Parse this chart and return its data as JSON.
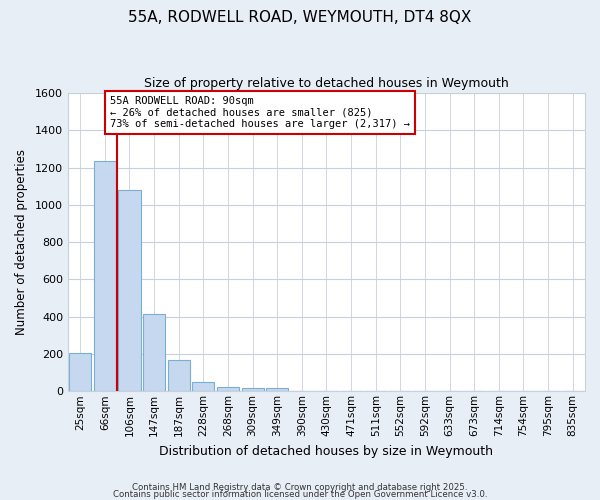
{
  "title": "55A, RODWELL ROAD, WEYMOUTH, DT4 8QX",
  "subtitle": "Size of property relative to detached houses in Weymouth",
  "xlabel": "Distribution of detached houses by size in Weymouth",
  "ylabel": "Number of detached properties",
  "categories": [
    "25sqm",
    "66sqm",
    "106sqm",
    "147sqm",
    "187sqm",
    "228sqm",
    "268sqm",
    "309sqm",
    "349sqm",
    "390sqm",
    "430sqm",
    "471sqm",
    "511sqm",
    "552sqm",
    "592sqm",
    "633sqm",
    "673sqm",
    "714sqm",
    "754sqm",
    "795sqm",
    "835sqm"
  ],
  "values": [
    205,
    1235,
    1080,
    415,
    170,
    50,
    25,
    20,
    20,
    0,
    0,
    0,
    0,
    0,
    0,
    0,
    0,
    0,
    0,
    0,
    0
  ],
  "bar_color": "#c5d8f0",
  "bar_edge_color": "#7aafd4",
  "red_line_x": 1.5,
  "annotation_line1": "55A RODWELL ROAD: 90sqm",
  "annotation_line2": "← 26% of detached houses are smaller (825)",
  "annotation_line3": "73% of semi-detached houses are larger (2,317) →",
  "annotation_box_color": "#ffffff",
  "annotation_border_color": "#cc0000",
  "ylim": [
    0,
    1600
  ],
  "yticks": [
    0,
    200,
    400,
    600,
    800,
    1000,
    1200,
    1400,
    1600
  ],
  "bg_color": "#e8eef5",
  "plot_bg_color": "#ffffff",
  "grid_color": "#c8d0dc",
  "footer1": "Contains HM Land Registry data © Crown copyright and database right 2025.",
  "footer2": "Contains public sector information licensed under the Open Government Licence v3.0."
}
